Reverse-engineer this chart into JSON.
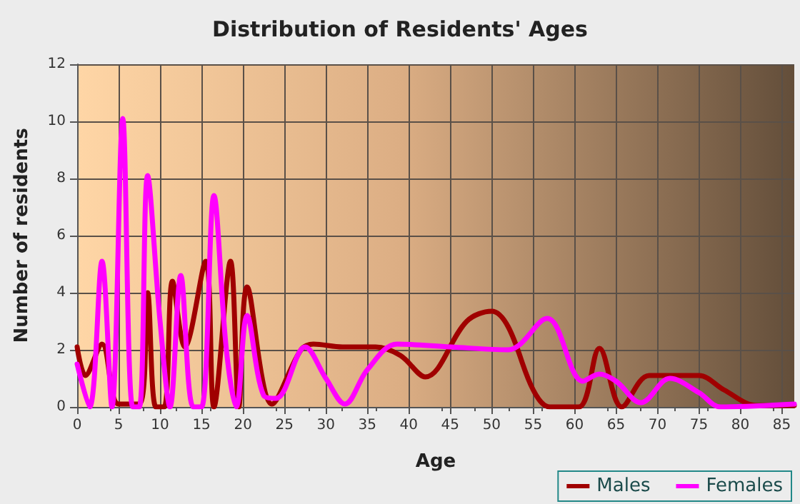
{
  "chart_data": {
    "type": "line",
    "title": "Distribution of Residents' Ages",
    "xlabel": "Age",
    "ylabel": "Number of residents",
    "xlim": [
      0,
      86.5
    ],
    "xticks": [
      0,
      5,
      10,
      15,
      20,
      25,
      30,
      35,
      40,
      45,
      50,
      55,
      60,
      65,
      70,
      75,
      80,
      85
    ],
    "ylim": [
      0,
      12
    ],
    "yticks": [
      0,
      2,
      4,
      6,
      8,
      10,
      12
    ],
    "grid": true,
    "legend": "bottom right",
    "marker": "none",
    "line_style": "solid",
    "series": [
      {
        "name": "Males",
        "color": "#a00000",
        "x": [
          0,
          1,
          3,
          5,
          7.5,
          8.5,
          9.5,
          10.5,
          11.5,
          13,
          15.5,
          16.5,
          18.5,
          19.5,
          20.5,
          23.5,
          27,
          28.5,
          32,
          36,
          39,
          42,
          47,
          50,
          52,
          55,
          57,
          60.5,
          63,
          65.7,
          69,
          75,
          78,
          82,
          86.5
        ],
        "values": [
          2.1,
          1.1,
          2.2,
          0.1,
          0.1,
          4,
          0,
          0,
          4.4,
          2.1,
          5.1,
          0,
          5.1,
          0,
          4.2,
          0.1,
          2,
          2.2,
          2.1,
          2.1,
          1.8,
          1.05,
          3,
          3.35,
          2.8,
          0.6,
          0,
          0,
          2.05,
          0,
          1.1,
          1.1,
          0.6,
          0.05,
          0.05
        ]
      },
      {
        "name": "Females",
        "color": "#ff00ff",
        "x": [
          0,
          1.5,
          3,
          4.2,
          5.5,
          6.7,
          7.5,
          8.5,
          10,
          11.2,
          12.5,
          14,
          15,
          16.5,
          18,
          19.2,
          20.5,
          22.5,
          24,
          27.5,
          30,
          32.3,
          35,
          38.6,
          45,
          52,
          56.7,
          61,
          63,
          65,
          68,
          71.5,
          75,
          77.6,
          86.5
        ],
        "values": [
          1.5,
          0,
          5.1,
          0,
          10.1,
          0,
          0,
          8.1,
          3,
          0,
          4.6,
          0,
          0,
          7.4,
          2,
          0,
          3.2,
          0.4,
          0.3,
          2.1,
          1,
          0.1,
          1.3,
          2.2,
          2.1,
          2,
          3.1,
          0.9,
          1.15,
          0.9,
          0.15,
          1,
          0.5,
          0,
          0.1
        ]
      }
    ]
  }
}
